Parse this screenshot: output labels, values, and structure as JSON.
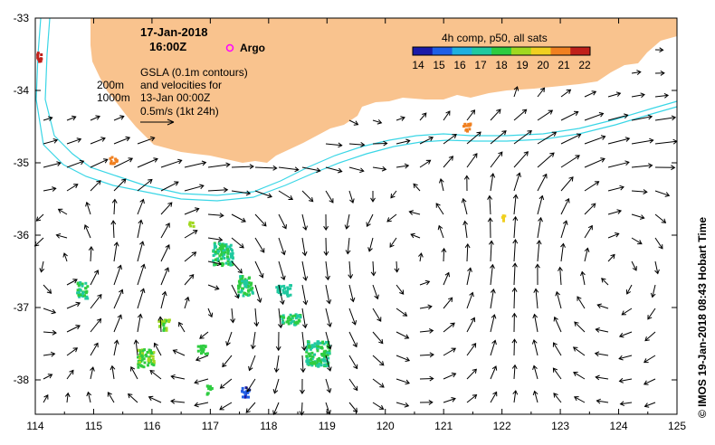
{
  "title": {
    "date": "17-Jan-2018",
    "time": "16:00Z"
  },
  "argo_label": "Argo",
  "depth_labels": [
    "200m",
    "1000m"
  ],
  "annotation_lines": [
    "GSLA (0.1m contours)",
    "and velocities for",
    "13-Jan 00:00Z",
    "0.5m/s (1kt 24h)"
  ],
  "colorbar": {
    "title": "4h comp, p50, all sats",
    "ticks": [
      "14",
      "15",
      "16",
      "17",
      "18",
      "19",
      "20",
      "21",
      "22"
    ]
  },
  "credit": "© IMOS 19-Jan-2018 08:43 Hobart Time",
  "x_axis": {
    "ticks": [
      "114",
      "115",
      "116",
      "117",
      "118",
      "119",
      "120",
      "121",
      "122",
      "123",
      "124",
      "125"
    ]
  },
  "y_axis": {
    "ticks": [
      "-33",
      "-34",
      "-35",
      "-36",
      "-37",
      "-38"
    ]
  },
  "colors": {
    "land": "#f9c38e",
    "contour": "#3ad6e6",
    "argo": "#ff00ff",
    "arrow": "#000000",
    "colorbar_stops": [
      "#1a1aa8",
      "#1f5fe6",
      "#1fb0e0",
      "#20c9a0",
      "#2ecc40",
      "#a0d820",
      "#f0d020",
      "#f08020",
      "#c0201a"
    ]
  }
}
